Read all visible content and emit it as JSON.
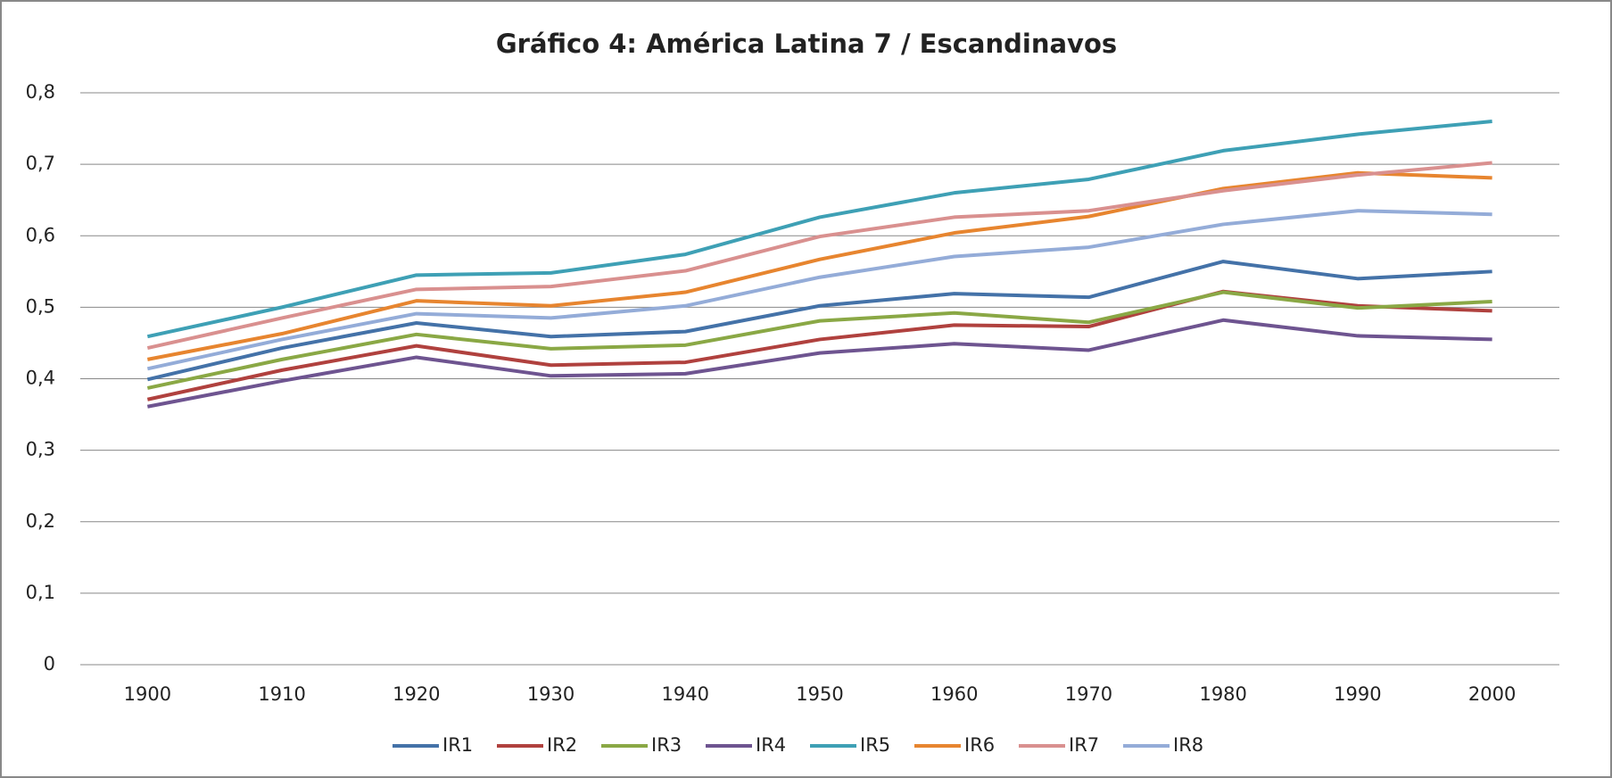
{
  "chart_data": {
    "type": "line",
    "title": "Gráfico 4: América Latina 7 / Escandinavos",
    "categories": [
      "1900",
      "1910",
      "1920",
      "1930",
      "1940",
      "1950",
      "1960",
      "1970",
      "1980",
      "1990",
      "2000"
    ],
    "series": [
      {
        "name": "IR1",
        "color": "#4472a8",
        "values": [
          0.399,
          0.443,
          0.478,
          0.459,
          0.466,
          0.502,
          0.519,
          0.514,
          0.564,
          0.54,
          0.55
        ]
      },
      {
        "name": "IR2",
        "color": "#b0413e",
        "values": [
          0.371,
          0.412,
          0.446,
          0.419,
          0.423,
          0.455,
          0.475,
          0.473,
          0.522,
          0.502,
          0.495
        ]
      },
      {
        "name": "IR3",
        "color": "#8aa845",
        "values": [
          0.387,
          0.427,
          0.462,
          0.442,
          0.447,
          0.481,
          0.492,
          0.479,
          0.521,
          0.499,
          0.508
        ]
      },
      {
        "name": "IR4",
        "color": "#6e5490",
        "values": [
          0.361,
          0.397,
          0.43,
          0.404,
          0.407,
          0.436,
          0.449,
          0.44,
          0.482,
          0.46,
          0.455
        ]
      },
      {
        "name": "IR5",
        "color": "#3ea0b5",
        "values": [
          0.459,
          0.5,
          0.545,
          0.548,
          0.574,
          0.626,
          0.66,
          0.679,
          0.719,
          0.742,
          0.76
        ]
      },
      {
        "name": "IR6",
        "color": "#e7852f",
        "values": [
          0.427,
          0.463,
          0.509,
          0.502,
          0.521,
          0.567,
          0.604,
          0.627,
          0.666,
          0.688,
          0.681
        ]
      },
      {
        "name": "IR7",
        "color": "#d9908f",
        "values": [
          0.443,
          0.485,
          0.525,
          0.529,
          0.551,
          0.599,
          0.626,
          0.635,
          0.663,
          0.685,
          0.702
        ]
      },
      {
        "name": "IR8",
        "color": "#94acd8",
        "values": [
          0.414,
          0.455,
          0.491,
          0.485,
          0.502,
          0.542,
          0.571,
          0.584,
          0.616,
          0.635,
          0.63
        ]
      }
    ],
    "ylim": [
      0,
      0.8
    ],
    "yticks": [
      0,
      {
        "value": 0.1,
        "label": "0,1"
      },
      {
        "value": 0.2,
        "label": "0,2"
      },
      {
        "value": 0.3,
        "label": "0,3"
      },
      {
        "value": 0.4,
        "label": "0,4"
      },
      {
        "value": 0.5,
        "label": "0,5"
      },
      {
        "value": 0.6,
        "label": "0,6"
      },
      {
        "value": 0.7,
        "label": "0,7"
      },
      {
        "value": 0.8,
        "label": "0,8"
      }
    ],
    "grid": true,
    "legend": "bottom"
  }
}
